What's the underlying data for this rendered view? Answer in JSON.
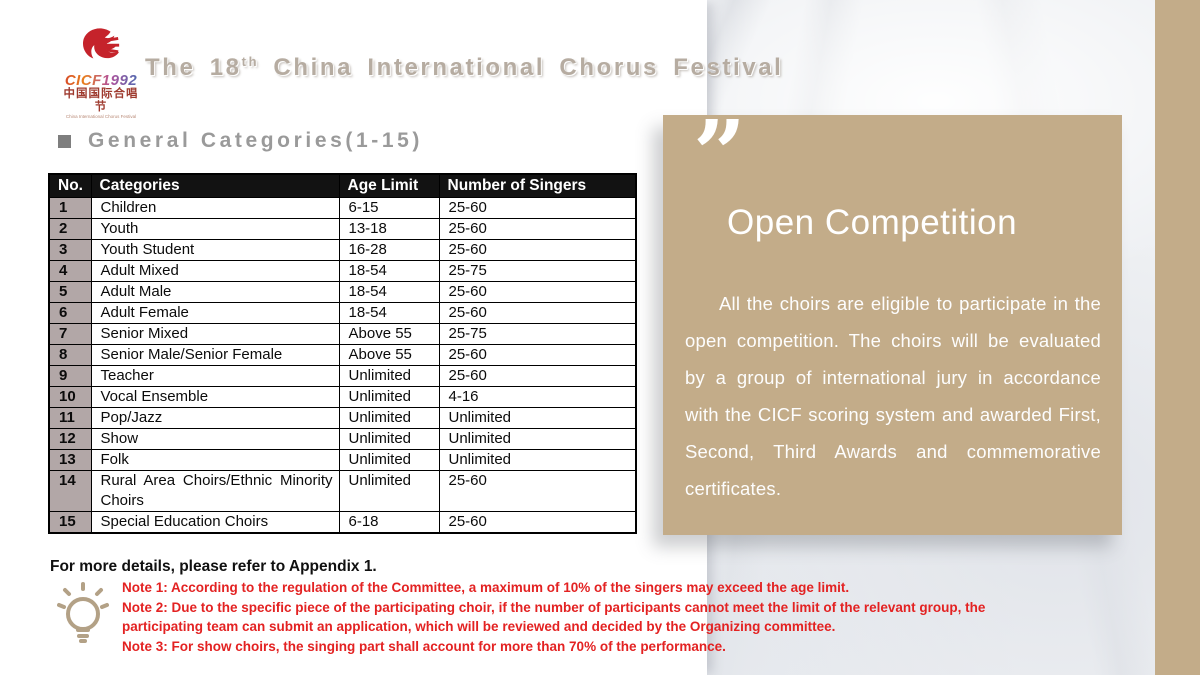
{
  "logo": {
    "cicf": "CICF1992",
    "chinese": "中国国际合唱节",
    "subtext": "China International Chorus Festival"
  },
  "header": {
    "title_prefix": "The 18",
    "title_sup": "th",
    "title_rest": " China International Chorus Festival"
  },
  "section": {
    "heading": "General Categories(1-15)"
  },
  "table": {
    "headers": [
      "No.",
      "Categories",
      "Age Limit",
      "Number of Singers"
    ],
    "rows": [
      [
        "1",
        "Children",
        "6-15",
        "25-60"
      ],
      [
        "2",
        "Youth",
        "13-18",
        "25-60"
      ],
      [
        "3",
        "Youth Student",
        "16-28",
        "25-60"
      ],
      [
        "4",
        "Adult Mixed",
        "18-54",
        "25-75"
      ],
      [
        "5",
        "Adult Male",
        "18-54",
        "25-60"
      ],
      [
        "6",
        "Adult Female",
        "18-54",
        "25-60"
      ],
      [
        "7",
        "Senior Mixed",
        "Above 55",
        "25-75"
      ],
      [
        "8",
        "Senior Male/Senior Female",
        "Above 55",
        "25-60"
      ],
      [
        "9",
        "Teacher",
        "Unlimited",
        "25-60"
      ],
      [
        "10",
        "Vocal Ensemble",
        "Unlimited",
        "4-16"
      ],
      [
        "11",
        "Pop/Jazz",
        "Unlimited",
        "Unlimited"
      ],
      [
        "12",
        "Show",
        "Unlimited",
        "Unlimited"
      ],
      [
        "13",
        "Folk",
        "Unlimited",
        "Unlimited"
      ],
      [
        "14",
        "Rural Area Choirs/Ethnic Minority Choirs",
        "Unlimited",
        "25-60"
      ],
      [
        "15",
        "Special Education Choirs",
        "6-18",
        "25-60"
      ]
    ]
  },
  "panel": {
    "quote_mark": "”",
    "title": "Open Competition",
    "body": "All the choirs are eligible to participate in the open competition. The choirs will be evaluated by a group of international jury in accordance with the CICF scoring system and awarded First, Second, Third Awards and commemorative certificates."
  },
  "footer": {
    "appendix": "For more details, please refer to Appendix 1.",
    "notes": [
      "Note 1: According to the regulation of the Committee, a maximum of 10% of the singers may exceed the age limit.",
      "Note 2: Due to the specific piece of the participating choir, if the number of participants cannot meet the limit of the relevant group, the participating team can submit an application, which will be reviewed and decided by the Organizing committee.",
      "Note 3: For show choirs, the singing part shall account for more than 70% of the performance."
    ]
  },
  "colors": {
    "tan": "#c3ac89",
    "note_red": "#e32222",
    "number_column_gray": "#b2a7a7",
    "title_gray": "#b6aca1",
    "heading_gray": "#9a9a9a",
    "table_header_bg": "#121212"
  }
}
